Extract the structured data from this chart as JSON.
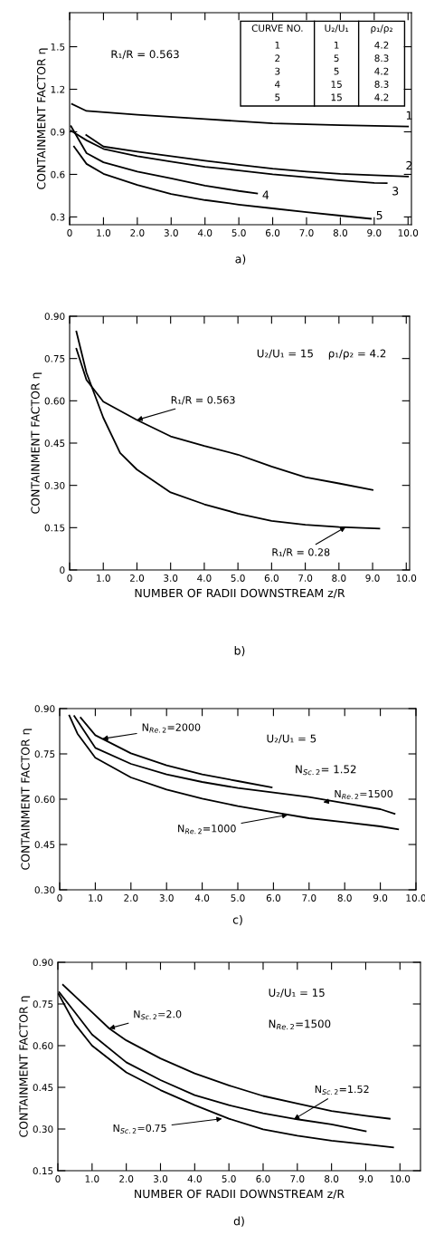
{
  "chart_data": [
    {
      "type": "line",
      "legend": "right",
      "ylabel": "CONTAINMENT FACTOR η",
      "xlim": [
        0,
        10.1
      ],
      "ylim": [
        0.245,
        1.74
      ],
      "xticks": [
        0,
        {
          "value": 1,
          "label": "1.0"
        },
        {
          "value": 2,
          "label": "2.0"
        },
        {
          "value": 3,
          "label": "3.0"
        },
        {
          "value": 4,
          "label": "4.0"
        },
        {
          "value": 5,
          "label": "5.0"
        },
        {
          "value": 6,
          "label": "6.0"
        },
        {
          "value": 7,
          "label": "7.0"
        },
        {
          "value": 8,
          "label": "8.0"
        },
        {
          "value": 9,
          "label": "9.0"
        },
        {
          "value": 10,
          "label": "10.0"
        }
      ],
      "yticks": [
        0.3,
        0.6,
        0.9,
        1.2,
        1.5
      ],
      "series": [
        {
          "name": "1",
          "color": "#000000",
          "x": [
            0.07,
            0.5,
            2,
            4,
            6,
            8,
            10
          ],
          "values": [
            1.096,
            1.047,
            1.02,
            0.99,
            0.96,
            0.947,
            0.938
          ]
        },
        {
          "name": "2",
          "color": "#000000",
          "x": [
            0.49,
            1,
            2,
            3,
            4,
            5,
            6,
            7,
            8,
            9,
            10
          ],
          "values": [
            0.877,
            0.796,
            0.76,
            0.728,
            0.696,
            0.668,
            0.64,
            0.62,
            0.604,
            0.594,
            0.585
          ]
        },
        {
          "name": "3",
          "color": "#000000",
          "x": [
            0.04,
            0.5,
            1,
            2,
            3,
            4,
            5,
            6,
            7,
            8,
            9,
            9.37
          ],
          "values": [
            0.908,
            0.84,
            0.78,
            0.728,
            0.69,
            0.653,
            0.628,
            0.6,
            0.579,
            0.557,
            0.54,
            0.538
          ]
        },
        {
          "name": "4",
          "color": "#000000",
          "x": [
            0.04,
            0.5,
            1,
            2,
            3,
            4,
            5,
            5.54
          ],
          "values": [
            0.94,
            0.75,
            0.685,
            0.62,
            0.572,
            0.52,
            0.483,
            0.466
          ]
        },
        {
          "name": "5",
          "color": "#000000",
          "x": [
            0.13,
            0.5,
            1,
            2,
            3,
            4,
            5,
            6,
            7,
            8,
            8.9
          ],
          "values": [
            0.796,
            0.674,
            0.604,
            0.526,
            0.462,
            0.419,
            0.387,
            0.36,
            0.334,
            0.309,
            0.287
          ]
        }
      ],
      "annotations": [
        "R₁/R = 0.563",
        "CURVE NO.\tU₂/U₁\tρ₁/ρ₂",
        "1\t1\t4.2",
        "2\t5\t8.3",
        "3\t5\t4.2",
        "4\t15\t8.3",
        "5\t15\t4.2",
        "a)"
      ]
    },
    {
      "type": "line",
      "ylabel": "CONTAINMENT FACTOR η",
      "xlabel": "NUMBER OF RADII DOWNSTREAM z/R",
      "xlim": [
        0,
        10.1
      ],
      "ylim": [
        0,
        0.9
      ],
      "xticks": [
        0,
        {
          "value": 1,
          "label": "1.0"
        },
        {
          "value": 2,
          "label": "2.0"
        },
        {
          "value": 3,
          "label": "3.0"
        },
        {
          "value": 4,
          "label": "4.0"
        },
        {
          "value": 5,
          "label": "5.0"
        },
        {
          "value": 6,
          "label": "6.0"
        },
        {
          "value": 7,
          "label": "7.0"
        },
        {
          "value": 8,
          "label": "8.0"
        },
        {
          "value": 9,
          "label": "9.0"
        },
        {
          "value": 10,
          "label": "10.0"
        }
      ],
      "yticks": [
        0,
        0.15,
        {
          "value": 0.3,
          "label": "0.30"
        },
        0.45,
        {
          "value": 0.6,
          "label": "0.60"
        },
        0.75,
        {
          "value": 0.9,
          "label": "0.90"
        }
      ],
      "series": [
        {
          "color": "#000000",
          "x": [
            0.2,
            0.5,
            1,
            2,
            3,
            4,
            5,
            6,
            7,
            8,
            9
          ],
          "values": [
            0.785,
            0.674,
            0.597,
            0.532,
            0.474,
            0.44,
            0.409,
            0.367,
            0.329,
            0.307,
            0.284
          ]
        },
        {
          "color": "#000000",
          "x": [
            0.2,
            0.5,
            1,
            1.5,
            2,
            3,
            4,
            5,
            6,
            7,
            8,
            9.2
          ],
          "values": [
            0.846,
            0.7,
            0.54,
            0.415,
            0.356,
            0.275,
            0.233,
            0.2,
            0.174,
            0.16,
            0.152,
            0.147
          ]
        }
      ],
      "annotations": [
        "U₂/U₁ = 15",
        "ρ₁/ρ₂ = 4.2",
        {
          "text": "R₁/R = 0.563",
          "x": 2.0,
          "y": 0.532
        },
        {
          "text": "R₁/R = 0.28",
          "x": 8.2,
          "y": 0.152
        },
        "b)"
      ]
    },
    {
      "type": "line",
      "ylabel": "CONTAINMENT FACTOR η",
      "xlim": [
        0,
        10
      ],
      "ylim": [
        0.3,
        0.9
      ],
      "xticks": [
        0,
        {
          "value": 1,
          "label": "1.0"
        },
        {
          "value": 2,
          "label": "2.0"
        },
        {
          "value": 3,
          "label": "3.0"
        },
        {
          "value": 4,
          "label": "4.0"
        },
        {
          "value": 5,
          "label": "5.0"
        },
        {
          "value": 6,
          "label": "6.0"
        },
        {
          "value": 7,
          "label": "7.0"
        },
        {
          "value": 8,
          "label": "8.0"
        },
        {
          "value": 9,
          "label": "9.0"
        },
        {
          "value": 10,
          "label": "10.0"
        }
      ],
      "yticks": [
        {
          "value": 0.3,
          "label": "0.30"
        },
        0.45,
        {
          "value": 0.6,
          "label": "0.60"
        },
        0.75,
        {
          "value": 0.9,
          "label": "0.90"
        }
      ],
      "series": [
        {
          "color": "#000000",
          "x": [
            0.59,
            1,
            2,
            3,
            4,
            5,
            5.95
          ],
          "values": [
            0.87,
            0.812,
            0.752,
            0.712,
            0.682,
            0.66,
            0.639
          ]
        },
        {
          "color": "#000000",
          "x": [
            0.41,
            1,
            2,
            3,
            4,
            5,
            6,
            7,
            8,
            9,
            9.4
          ],
          "values": [
            0.875,
            0.77,
            0.717,
            0.682,
            0.657,
            0.637,
            0.622,
            0.607,
            0.587,
            0.567,
            0.552
          ]
        },
        {
          "color": "#000000",
          "x": [
            0.27,
            0.5,
            1,
            2,
            3,
            4,
            5,
            6,
            7,
            8,
            9,
            9.5
          ],
          "values": [
            0.877,
            0.817,
            0.737,
            0.672,
            0.632,
            0.602,
            0.577,
            0.557,
            0.537,
            0.524,
            0.51,
            0.5
          ]
        }
      ],
      "annotations": [
        "U₂/U₁ = 5",
        "N$_{Sc.2}$= 1.52",
        {
          "text": "N$_{Re.2}$=2000",
          "x": 1.2,
          "y": 0.8
        },
        {
          "text": "N$_{Re.2}$=1500",
          "x": 7.4,
          "y": 0.59
        },
        {
          "text": "N$_{Re.2}$=1000",
          "x": 6.4,
          "y": 0.548
        },
        "c)"
      ]
    },
    {
      "type": "line",
      "ylabel": "CONTAINMENT FACTOR η",
      "xlabel": "NUMBER OF RADII DOWNSTREAM z/R",
      "xlim": [
        0,
        10.6
      ],
      "ylim": [
        0.15,
        0.9
      ],
      "xticks": [
        0,
        {
          "value": 1,
          "label": "1.0"
        },
        {
          "value": 2,
          "label": "2.0"
        },
        {
          "value": 3,
          "label": "3.0"
        },
        {
          "value": 4,
          "label": "4.0"
        },
        {
          "value": 5,
          "label": "5.0"
        },
        {
          "value": 6,
          "label": "6.0"
        },
        {
          "value": 7,
          "label": "7.0"
        },
        {
          "value": 8,
          "label": "8.0"
        },
        {
          "value": 9,
          "label": "9.0"
        },
        {
          "value": 10,
          "label": "10.0"
        }
      ],
      "yticks": [
        0.15,
        {
          "value": 0.3,
          "label": "0.30"
        },
        0.45,
        {
          "value": 0.6,
          "label": "0.60"
        },
        0.75,
        {
          "value": 0.9,
          "label": "0.90"
        }
      ],
      "series": [
        {
          "color": "#000000",
          "x": [
            0.15,
            1,
            1.5,
            2,
            3,
            4,
            5,
            6,
            7,
            8,
            9,
            9.7
          ],
          "values": [
            0.819,
            0.72,
            0.662,
            0.619,
            0.554,
            0.5,
            0.457,
            0.419,
            0.392,
            0.365,
            0.348,
            0.337
          ]
        },
        {
          "color": "#000000",
          "x": [
            0.04,
            0.5,
            1,
            2,
            3,
            4,
            5,
            6,
            7,
            8,
            9
          ],
          "values": [
            0.792,
            0.72,
            0.64,
            0.54,
            0.476,
            0.422,
            0.386,
            0.357,
            0.335,
            0.317,
            0.292
          ]
        },
        {
          "color": "#000000",
          "x": [
            0.02,
            0.5,
            1,
            2,
            3,
            4,
            5,
            6,
            7,
            8,
            9,
            9.8
          ],
          "values": [
            0.786,
            0.678,
            0.6,
            0.504,
            0.44,
            0.386,
            0.337,
            0.299,
            0.276,
            0.258,
            0.245,
            0.234
          ]
        }
      ],
      "annotations": [
        "U₂/U₁ = 15",
        "N$_{Re.2}$=1500",
        {
          "text": "N$_{Sc.2}$=2.0",
          "x": 1.5,
          "y": 0.662
        },
        {
          "text": "N$_{Sc.2}$=1.52",
          "x": 6.9,
          "y": 0.335
        },
        {
          "text": "N$_{Sc.2}$=0.75",
          "x": 4.8,
          "y": 0.337
        },
        "d)"
      ]
    }
  ]
}
